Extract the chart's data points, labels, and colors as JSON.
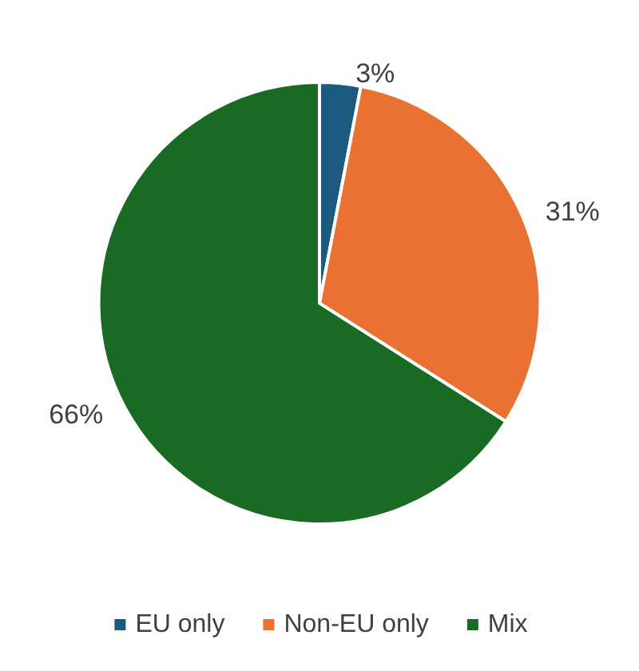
{
  "chart_data": {
    "type": "pie",
    "categories": [
      "EU only",
      "Non-EU only",
      "Mix"
    ],
    "values": [
      3,
      31,
      66
    ],
    "colors": [
      "#1c5a80",
      "#e97132",
      "#196b24"
    ],
    "value_labels": [
      "3%",
      "31%",
      "66%"
    ],
    "legend": "bottom"
  }
}
